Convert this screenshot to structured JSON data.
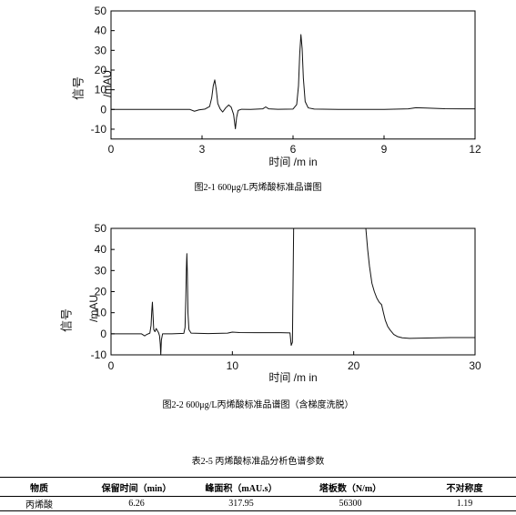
{
  "chart_data": [
    {
      "type": "line",
      "title": "",
      "xlabel": "时间 /m in",
      "ylabel": [
        "信号",
        "/mAU"
      ],
      "xlim": [
        0,
        12
      ],
      "ylim": [
        -15,
        50
      ],
      "xticks": [
        0,
        3,
        6,
        9,
        12
      ],
      "yticks": [
        -10,
        0,
        10,
        20,
        30,
        40,
        50
      ],
      "grid": false,
      "series": [
        {
          "points": [
            [
              0,
              0
            ],
            [
              1,
              0
            ],
            [
              2,
              0
            ],
            [
              2.6,
              0
            ],
            [
              2.75,
              -0.9
            ],
            [
              2.9,
              -0.2
            ],
            [
              3.1,
              0.2
            ],
            [
              3.25,
              1.5
            ],
            [
              3.32,
              6.0
            ],
            [
              3.37,
              12.0
            ],
            [
              3.42,
              15.0
            ],
            [
              3.47,
              10.0
            ],
            [
              3.52,
              3.0
            ],
            [
              3.6,
              0.2
            ],
            [
              3.68,
              -1.3
            ],
            [
              3.78,
              0.8
            ],
            [
              3.88,
              2.3
            ],
            [
              3.96,
              1.2
            ],
            [
              4.04,
              -2.5
            ],
            [
              4.1,
              -9.8
            ],
            [
              4.14,
              -4.0
            ],
            [
              4.19,
              -0.5
            ],
            [
              4.3,
              0.1
            ],
            [
              4.6,
              0
            ],
            [
              5.0,
              0.3
            ],
            [
              5.1,
              1.3
            ],
            [
              5.2,
              0.3
            ],
            [
              5.5,
              0.1
            ],
            [
              6.0,
              0.2
            ],
            [
              6.12,
              2.5
            ],
            [
              6.18,
              12.0
            ],
            [
              6.22,
              28.0
            ],
            [
              6.26,
              38.0
            ],
            [
              6.3,
              31.0
            ],
            [
              6.34,
              16.0
            ],
            [
              6.4,
              4.0
            ],
            [
              6.5,
              0.8
            ],
            [
              6.7,
              0.2
            ],
            [
              7.5,
              0
            ],
            [
              9.0,
              0
            ],
            [
              9.8,
              0.3
            ],
            [
              10.05,
              0.9
            ],
            [
              10.4,
              0.7
            ],
            [
              11.0,
              0.4
            ],
            [
              12.0,
              0.3
            ]
          ]
        }
      ]
    },
    {
      "type": "line",
      "title": "",
      "xlabel": "时间 /m in",
      "ylabel": [
        "信号",
        "/mAU"
      ],
      "xlim": [
        0,
        30
      ],
      "ylim": [
        -10,
        50
      ],
      "xticks": [
        0,
        10,
        20,
        30
      ],
      "yticks": [
        -10,
        0,
        10,
        20,
        30,
        40,
        50
      ],
      "grid": false,
      "series": [
        {
          "points": [
            [
              0,
              0
            ],
            [
              2.5,
              0
            ],
            [
              2.78,
              -1.0
            ],
            [
              2.95,
              -0.3
            ],
            [
              3.2,
              0.3
            ],
            [
              3.3,
              4.0
            ],
            [
              3.36,
              11.0
            ],
            [
              3.41,
              15.0
            ],
            [
              3.46,
              9.0
            ],
            [
              3.52,
              2.0
            ],
            [
              3.62,
              1.0
            ],
            [
              3.72,
              2.5
            ],
            [
              3.82,
              1.5
            ],
            [
              3.92,
              0.5
            ],
            [
              4.0,
              -1.0
            ],
            [
              4.06,
              -5.0
            ],
            [
              4.1,
              -10.0
            ],
            [
              4.15,
              -3.0
            ],
            [
              4.25,
              0
            ],
            [
              5.0,
              0
            ],
            [
              6.0,
              0.2
            ],
            [
              6.1,
              3.0
            ],
            [
              6.16,
              16.0
            ],
            [
              6.21,
              31.0
            ],
            [
              6.25,
              38.0
            ],
            [
              6.29,
              29.0
            ],
            [
              6.34,
              10.0
            ],
            [
              6.42,
              2.0
            ],
            [
              6.6,
              0.3
            ],
            [
              8.0,
              0.1
            ],
            [
              9.6,
              0.3
            ],
            [
              10.0,
              0.8
            ],
            [
              10.6,
              0.6
            ],
            [
              12.0,
              0.5
            ],
            [
              14.0,
              0.5
            ],
            [
              14.75,
              0.4
            ],
            [
              14.85,
              -5.5
            ],
            [
              14.95,
              -4.0
            ],
            [
              15.05,
              50.0
            ],
            [
              15.1,
              60.0
            ],
            [
              20.95,
              60.0
            ],
            [
              21.0,
              50.0
            ],
            [
              21.15,
              40.0
            ],
            [
              21.3,
              32.0
            ],
            [
              21.5,
              24.0
            ],
            [
              21.7,
              20.0
            ],
            [
              21.9,
              17.0
            ],
            [
              22.1,
              15.0
            ],
            [
              22.3,
              13.8
            ],
            [
              22.45,
              10.0
            ],
            [
              22.6,
              6.5
            ],
            [
              22.8,
              3.5
            ],
            [
              23.0,
              1.8
            ],
            [
              23.3,
              -0.3
            ],
            [
              23.6,
              -1.3
            ],
            [
              24.0,
              -1.9
            ],
            [
              24.6,
              -2.2
            ],
            [
              26.0,
              -2.0
            ],
            [
              28.0,
              -1.8
            ],
            [
              30.0,
              -1.8
            ]
          ]
        }
      ]
    }
  ],
  "captions": {
    "figure_1": "图2-1 600μg/L丙烯酸标准品谱图",
    "figure_2": "图2-2 600μg/L丙烯酸标准品谱图（含梯度洗脱）",
    "table_title": "表2-5 丙烯酸标准品分析色谱参数"
  },
  "table": {
    "headers": [
      "物质",
      "保留时间（min）",
      "峰面积（mAU.s）",
      "塔板数（N/m）",
      "不对称度"
    ],
    "rows": [
      [
        "丙烯酸",
        "6.26",
        "317.95",
        "56300",
        "1.19"
      ]
    ]
  }
}
